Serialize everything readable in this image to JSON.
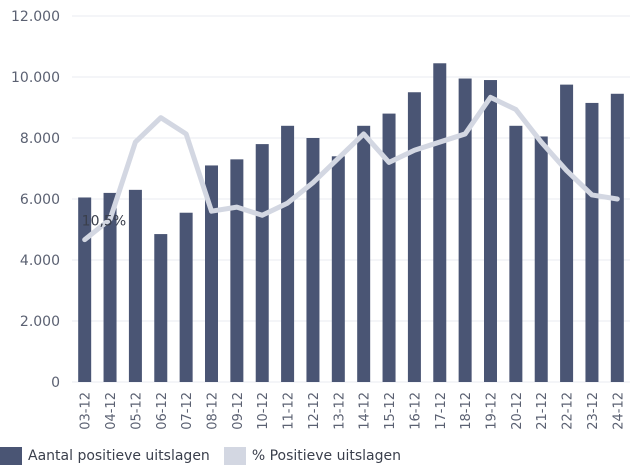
{
  "chart_data": {
    "type": "bar",
    "categories": [
      "03-12",
      "04-12",
      "05-12",
      "06-12",
      "07-12",
      "08-12",
      "09-12",
      "10-12",
      "11-12",
      "12-12",
      "13-12",
      "14-12",
      "15-12",
      "16-12",
      "17-12",
      "18-12",
      "19-12",
      "20-12",
      "21-12",
      "22-12",
      "23-12",
      "24-12"
    ],
    "series": [
      {
        "name": "Aantal positieve uitslagen",
        "type": "bar",
        "color": "#4a5574",
        "values": [
          6050,
          6200,
          6300,
          4850,
          5550,
          7100,
          7300,
          7800,
          8400,
          8000,
          7400,
          8400,
          8800,
          9500,
          10450,
          9950,
          9900,
          8400,
          8050,
          9750,
          9150,
          9450
        ]
      },
      {
        "name": "% Positieve uitslagen",
        "type": "line",
        "color": "#d3d7e2",
        "secondary_axis": true,
        "values": [
          10.5,
          11.0,
          12.9,
          13.5,
          13.1,
          11.2,
          11.3,
          11.1,
          11.4,
          11.9,
          12.5,
          13.1,
          12.4,
          12.7,
          12.9,
          13.1,
          14.0,
          13.7,
          12.9,
          12.2,
          11.6,
          11.5
        ]
      }
    ],
    "annotations": [
      {
        "text": "10,5%",
        "series": 1,
        "index": 0
      }
    ],
    "ylim": [
      0,
      12000
    ],
    "yticks": [
      0,
      2000,
      4000,
      6000,
      8000,
      10000,
      12000
    ],
    "ytick_labels": [
      "0",
      "2.000",
      "4.000",
      "6.000",
      "8.000",
      "10.000",
      "12.000"
    ],
    "line_axis_range": [
      7.0,
      16.0
    ],
    "title": "",
    "xlabel": "",
    "ylabel": "",
    "grid": true,
    "legend_position": "bottom-left"
  }
}
